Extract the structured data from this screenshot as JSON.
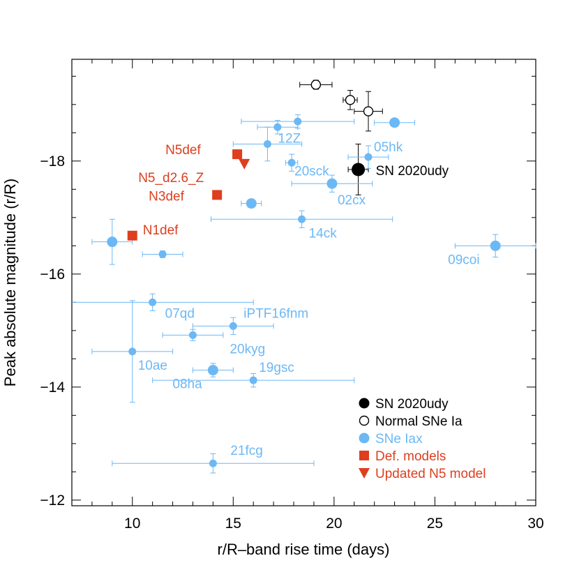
{
  "chart_data": {
    "type": "scatter",
    "xlabel": "r/R–band rise time (days)",
    "ylabel": "Peak absolute magnitude (r/R)",
    "xlim": [
      7,
      30
    ],
    "ylim": [
      -11.9,
      -19.8
    ],
    "x_ticks": [
      10,
      15,
      20,
      25,
      30
    ],
    "y_ticks": [
      -12,
      -14,
      -16,
      -18
    ],
    "y_tick_labels": [
      "−12",
      "−14",
      "−16",
      "−18"
    ],
    "colors": {
      "sn2020udy": "#000000",
      "normal": "#000000",
      "iax": "#6cb8f5",
      "models": "#dd3f1f"
    },
    "series": [
      {
        "name": "SN 2020udy",
        "marker": "big-filled-circle",
        "points": [
          {
            "label": "SN 2020udy",
            "x": 21.2,
            "y": -17.85,
            "xerr": 0.5,
            "yerr": 0.45
          }
        ]
      },
      {
        "name": "Normal SNe Ia",
        "marker": "open-circle",
        "points": [
          {
            "label": "",
            "x": 19.1,
            "y": -19.35,
            "xerr": 0.8,
            "yerr": 0.08
          },
          {
            "label": "",
            "x": 20.8,
            "y": -19.08,
            "xerr": 0.35,
            "yerr": 0.17
          },
          {
            "label": "",
            "x": 21.7,
            "y": -18.88,
            "xerr": 0.7,
            "yerr": 0.35
          }
        ]
      },
      {
        "name": "SNe Iax",
        "marker": "filled-circle",
        "points": [
          {
            "label": "",
            "x": 23.0,
            "y": -18.68,
            "xerr": 1.0,
            "yerr": 0.07,
            "size": "big"
          },
          {
            "label": "",
            "x": 18.2,
            "y": -18.7,
            "xerr": 2.8,
            "yerr": 0.12
          },
          {
            "label": "",
            "x": 17.2,
            "y": -18.6,
            "xerr": 1.0,
            "yerr": 0.12
          },
          {
            "label": "12Z",
            "x": 16.7,
            "y": -18.3,
            "xerr": 1.7,
            "yerr": 0.3
          },
          {
            "label": "05hk",
            "x": 21.7,
            "y": -18.07,
            "xerr": 1.0,
            "yerr": 0.2
          },
          {
            "label": "20sck",
            "x": 17.9,
            "y": -17.97,
            "xerr": 0.3,
            "yerr": 0.15
          },
          {
            "label": "02cx",
            "x": 19.9,
            "y": -17.6,
            "xerr": 2.0,
            "yerr": 0.15,
            "size": "big"
          },
          {
            "label": "",
            "x": 15.9,
            "y": -17.25,
            "xerr": 0.5,
            "yerr": 0.05,
            "size": "big"
          },
          {
            "label": "14ck",
            "x": 18.4,
            "y": -16.97,
            "xerr": 4.5,
            "yerr": 0.15
          },
          {
            "label": "",
            "x": 9.0,
            "y": -16.57,
            "xerr": 1.0,
            "yerr": 0.4,
            "size": "big"
          },
          {
            "label": "",
            "x": 11.5,
            "y": -16.35,
            "xerr": 1.0,
            "yerr": 0.06
          },
          {
            "label": "09coi",
            "x": 28.0,
            "y": -16.5,
            "xerr": 2.0,
            "yerr": 0.2,
            "size": "big"
          },
          {
            "label": "07qd",
            "x": 11.0,
            "y": -15.5,
            "xerr": 5.0,
            "yerr": 0.15
          },
          {
            "label": "iPTF16fnm",
            "x": 15.0,
            "y": -15.08,
            "xerr": 2.0,
            "yerr": 0.15
          },
          {
            "label": "20kyg",
            "x": 13.0,
            "y": -14.92,
            "xerr": 1.5,
            "yerr": 0.1
          },
          {
            "label": "10ae",
            "x": 10.0,
            "y": -14.63,
            "xerr": 2.0,
            "yerr": 0.9
          },
          {
            "label": "08ha",
            "x": 14.0,
            "y": -14.3,
            "xerr": 1.0,
            "yerr": 0.12,
            "size": "big"
          },
          {
            "label": "19gsc",
            "x": 16.0,
            "y": -14.12,
            "xerr": 5.0,
            "yerr": 0.12
          },
          {
            "label": "21fcg",
            "x": 14.0,
            "y": -12.65,
            "xerr": 5.0,
            "yerr": 0.17
          }
        ]
      },
      {
        "name": "Def. models",
        "marker": "filled-square",
        "points": [
          {
            "label": "N5def",
            "x": 15.2,
            "y": -18.12
          },
          {
            "label": "N3def",
            "x": 14.2,
            "y": -17.4
          },
          {
            "label": "N1def",
            "x": 10.0,
            "y": -16.68
          }
        ]
      },
      {
        "name": "Updated N5 model",
        "marker": "filled-triangle-down",
        "points": [
          {
            "label": "N5_d2.6_Z",
            "x": 15.55,
            "y": -17.95
          }
        ]
      }
    ],
    "legend": {
      "placement": "bottom-right",
      "entries": [
        {
          "label": "SN 2020udy",
          "marker": "big-filled-circle",
          "color": "#000000"
        },
        {
          "label": "Normal SNe Ia",
          "marker": "open-circle",
          "color": "#000000"
        },
        {
          "label": "SNe Iax",
          "marker": "filled-circle",
          "color": "#6cb8f5"
        },
        {
          "label": "Def. models",
          "marker": "filled-square",
          "color": "#dd3f1f"
        },
        {
          "label": "Updated N5 model",
          "marker": "filled-triangle-down",
          "color": "#dd3f1f"
        }
      ]
    },
    "grid": false
  }
}
